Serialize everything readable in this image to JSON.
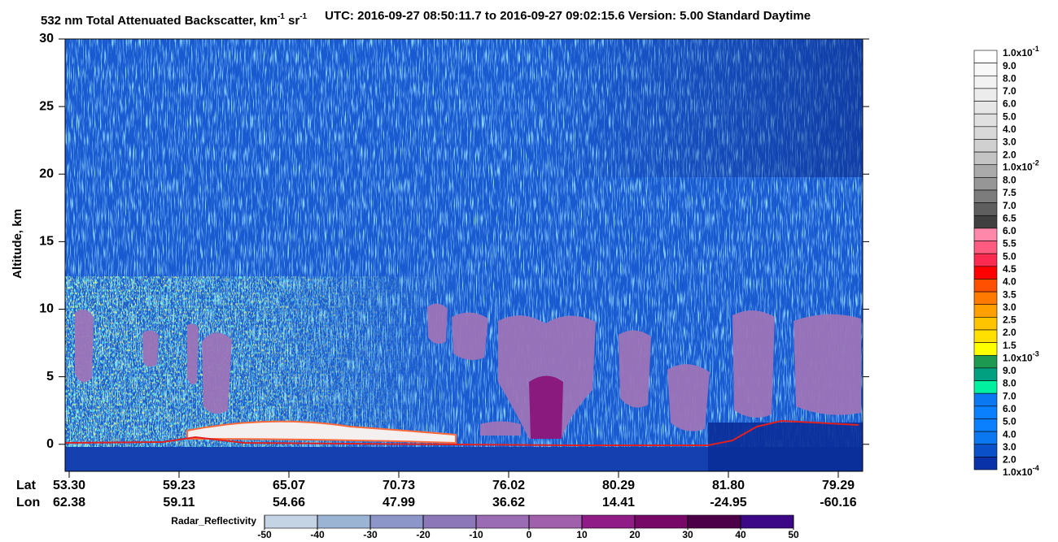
{
  "chart_data": {
    "type": "curtain",
    "title": "532 nm Total Attenuated Backscatter, km",
    "title_units": [
      {
        "text": "-1"
      },
      {
        "text": " sr"
      },
      {
        "text": "-1"
      }
    ],
    "subtitle": "UTC:  2016-09-27 08:50:11.7  to  2016-09-27 09:02:15.6    Version: 5.00  Standard  Daytime",
    "ylabel": "Altitude, km",
    "ylim": [
      -2,
      30
    ],
    "yticks": [
      0,
      5,
      10,
      15,
      20,
      25,
      30
    ],
    "lat_label": "Lat",
    "lon_label": "Lon",
    "lat": [
      "53.30",
      "59.23",
      "65.07",
      "70.73",
      "76.02",
      "80.29",
      "81.80",
      "79.29"
    ],
    "lon": [
      "62.38",
      "59.11",
      "54.66",
      "47.99",
      "36.62",
      "14.41",
      "-24.95",
      "-60.16"
    ],
    "colorbar": {
      "labels": [
        {
          "text": "1.0x10",
          "sup": "-1"
        },
        "9.0",
        "8.0",
        "7.0",
        "6.0",
        "5.0",
        "4.0",
        "3.0",
        "2.0",
        {
          "text": "1.0x10",
          "sup": "-2"
        },
        "8.0",
        "7.5",
        "7.0",
        "6.5",
        "6.0",
        "5.5",
        "5.0",
        "4.5",
        "4.0",
        "3.5",
        "3.0",
        "2.5",
        "2.0",
        "1.5",
        {
          "text": "1.0x10",
          "sup": "-3"
        },
        "9.0",
        "8.0",
        "7.0",
        "6.0",
        "5.0",
        "4.0",
        "3.0",
        "2.0",
        {
          "text": "1.0x10",
          "sup": "-4"
        }
      ],
      "colors": [
        "#ffffff",
        "#f8f8f8",
        "#f2f2f2",
        "#ececec",
        "#e6e6e6",
        "#e0e0e0",
        "#d8d8d8",
        "#d0d0d0",
        "#c4c4c4",
        "#aaaaaa",
        "#969696",
        "#7c7c7c",
        "#5e5e5e",
        "#404040",
        "#ff88aa",
        "#ff5a80",
        "#ff2a50",
        "#ff0000",
        "#ff5000",
        "#ff7a00",
        "#ffa000",
        "#ffc400",
        "#ffe000",
        "#ffff00",
        "#1e9a50",
        "#00a080",
        "#00f0a0",
        "#0a78f0",
        "#0a80ff",
        "#0a80ff",
        "#0a78f0",
        "#0a50c8",
        "#0a32a8"
      ]
    },
    "radar": {
      "label": "Radar_Reflectivity",
      "lim": [
        -50,
        50
      ],
      "ticks": [
        -50,
        -40,
        -30,
        -20,
        -10,
        0,
        10,
        20,
        30,
        40,
        50
      ],
      "colors": [
        "#c4d4e4",
        "#9cb4d4",
        "#8c96c8",
        "#8c78b8",
        "#9a6cb4",
        "#a060ac",
        "#901c88",
        "#780868",
        "#4c0048",
        "#3c0888"
      ]
    }
  }
}
